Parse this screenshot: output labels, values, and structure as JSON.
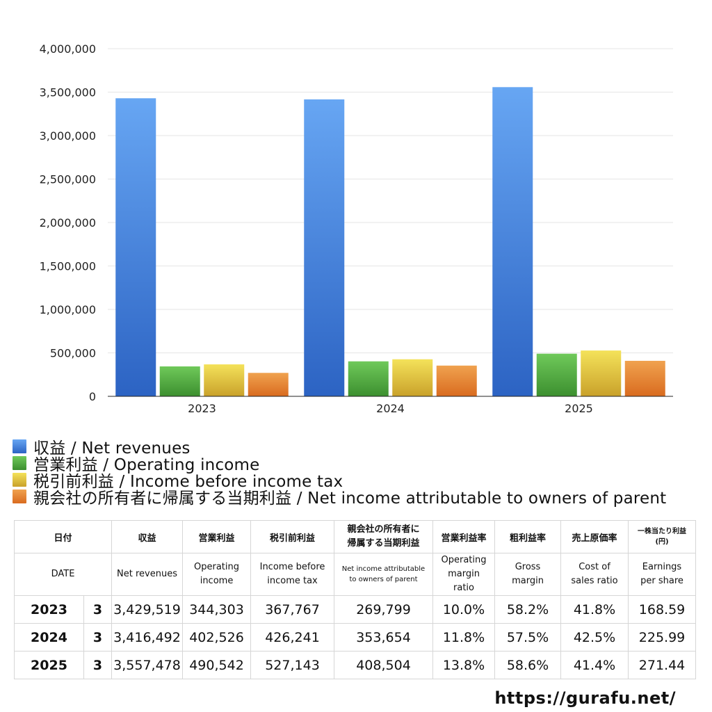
{
  "chart_data": {
    "type": "bar",
    "categories": [
      "2023",
      "2024",
      "2025"
    ],
    "series": [
      {
        "name": "収益 / Net revenues",
        "values": [
          3429519,
          3416492,
          3557478
        ],
        "color_top": "#67a6f3",
        "color_bottom": "#2c63c3"
      },
      {
        "name": "営業利益 / Operating income",
        "values": [
          344303,
          402526,
          490542
        ],
        "color_top": "#6fc95a",
        "color_bottom": "#3c8f2f"
      },
      {
        "name": "税引前利益 / Income before income tax",
        "values": [
          367767,
          426241,
          527143
        ],
        "color_top": "#f4e25a",
        "color_bottom": "#c9a12a"
      },
      {
        "name": "親会社の所有者に帰属する当期利益 / Net income attributable to owners of parent",
        "values": [
          269799,
          353654,
          408504
        ],
        "color_top": "#f0a24f",
        "color_bottom": "#d96b1f"
      }
    ],
    "yticks": [
      "0",
      "500,000",
      "1,000,000",
      "1,500,000",
      "2,000,000",
      "2,500,000",
      "3,000,000",
      "3,500,000",
      "4,000,000"
    ],
    "ylim": [
      0,
      4000000
    ],
    "grid": true,
    "legend_position": "bottom-left"
  },
  "table": {
    "header_jp": {
      "date": "日付",
      "revenues": "収益",
      "operating": "営業利益",
      "pretax": "税引前利益",
      "net_line1": "親会社の所有者に",
      "net_line2": "帰属する当期利益",
      "op_margin": "営業利益率",
      "gross": "粗利益率",
      "cost": "売上原価率",
      "eps_line1": "一株当たり利益",
      "eps_line2": "(円)"
    },
    "header_en": {
      "date": "DATE",
      "revenues": "Net revenues",
      "operating_line1": "Operating",
      "operating_line2": "income",
      "pretax_line1": "Income before",
      "pretax_line2": "income tax",
      "net_line1": "Net income attributable",
      "net_line2": "to owners of parent",
      "op_margin_line1": "Operating",
      "op_margin_line2": "margin",
      "op_margin_line3": "ratio",
      "gross_line1": "Gross",
      "gross_line2": "margin",
      "cost_line1": "Cost of",
      "cost_line2": "sales ratio",
      "eps_line1": "Earnings",
      "eps_line2": "per share"
    },
    "rows": [
      {
        "year": "2023",
        "month": "3",
        "revenues": "3,429,519",
        "operating": "344,303",
        "pretax": "367,767",
        "net": "269,799",
        "op_margin": "10.0%",
        "gross": "58.2%",
        "cost": "41.8%",
        "eps": "168.59"
      },
      {
        "year": "2024",
        "month": "3",
        "revenues": "3,416,492",
        "operating": "402,526",
        "pretax": "426,241",
        "net": "353,654",
        "op_margin": "11.8%",
        "gross": "57.5%",
        "cost": "42.5%",
        "eps": "225.99"
      },
      {
        "year": "2025",
        "month": "3",
        "revenues": "3,557,478",
        "operating": "490,542",
        "pretax": "527,143",
        "net": "408,504",
        "op_margin": "13.8%",
        "gross": "58.6%",
        "cost": "41.4%",
        "eps": "271.44"
      }
    ]
  },
  "site": "https://gurafu.net/"
}
